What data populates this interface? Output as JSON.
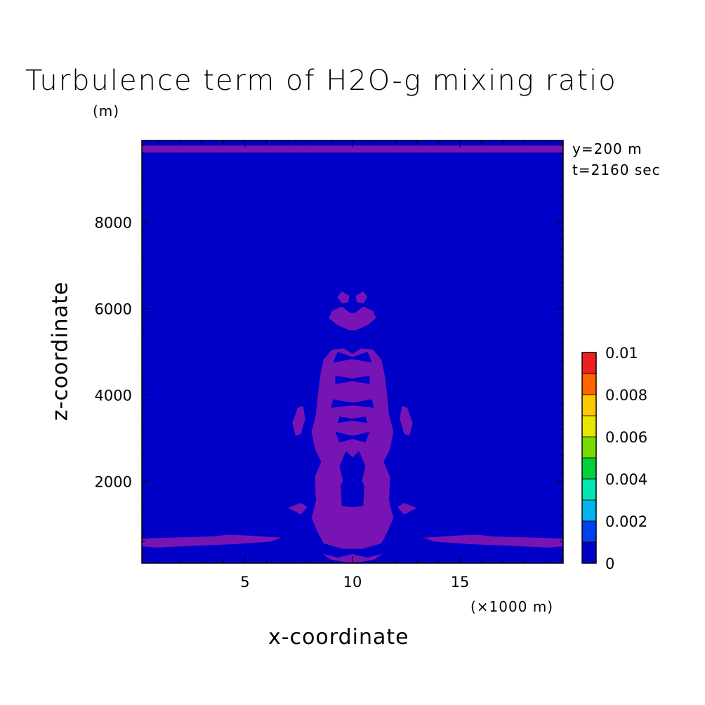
{
  "chart_data": {
    "type": "heatmap",
    "title": "Turbulence term of H2O-g mixing ratio",
    "units_label": "(m)",
    "annotations": [
      "y=200 m",
      "t=2160 sec"
    ],
    "xlabel": "x-coordinate",
    "x_unit": "(×1000 m)",
    "ylabel": "z-coordinate",
    "xlim": [
      0.2,
      19.8
    ],
    "ylim": [
      100,
      9900
    ],
    "x_ticks": [
      {
        "value": 5,
        "label": "5"
      },
      {
        "value": 10,
        "label": "10"
      },
      {
        "value": 15,
        "label": "15"
      }
    ],
    "y_ticks": [
      {
        "value": 2000,
        "label": "2000"
      },
      {
        "value": 4000,
        "label": "4000"
      },
      {
        "value": 6000,
        "label": "6000"
      },
      {
        "value": 8000,
        "label": "8000"
      }
    ],
    "colorbar": {
      "min": 0,
      "max": 0.01,
      "tick_labels": [
        "0",
        "0.002",
        "0.004",
        "0.006",
        "0.008",
        "0.01"
      ],
      "colors": [
        "#0000c8",
        "#0040f0",
        "#00b4f0",
        "#00e6b4",
        "#00d23c",
        "#78dc00",
        "#e6e600",
        "#ffc800",
        "#ff6400",
        "#f01e1e"
      ]
    },
    "background_level": {
      "range": [
        0,
        0.001
      ],
      "color": "#0000c8"
    },
    "regions": [
      {
        "range": [
          0,
          0.001
        ],
        "color": "#7814b4",
        "polygons": [
          [
            [
              0.2,
              9780
            ],
            [
              19.8,
              9780
            ],
            [
              19.8,
              9620
            ],
            [
              0.2,
              9620
            ]
          ],
          [
            [
              0.2,
              670
            ],
            [
              3.5,
              720
            ],
            [
              4.2,
              760
            ],
            [
              5.2,
              740
            ],
            [
              6.7,
              690
            ],
            [
              6.2,
              600
            ],
            [
              4.5,
              540
            ],
            [
              2.5,
              500
            ],
            [
              0.9,
              460
            ],
            [
              0.2,
              490
            ]
          ],
          [
            [
              19.8,
              670
            ],
            [
              16.5,
              720
            ],
            [
              15.8,
              760
            ],
            [
              14.8,
              740
            ],
            [
              13.3,
              690
            ],
            [
              13.8,
              600
            ],
            [
              15.5,
              540
            ],
            [
              17.5,
              500
            ],
            [
              19.1,
              460
            ],
            [
              19.8,
              490
            ]
          ],
          [
            [
              9.85,
              5500
            ],
            [
              9.3,
              5620
            ],
            [
              8.9,
              5780
            ],
            [
              9.05,
              5950
            ],
            [
              9.5,
              6050
            ],
            [
              9.9,
              5900
            ],
            [
              10.1,
              5900
            ],
            [
              10.5,
              6050
            ],
            [
              10.95,
              5950
            ],
            [
              11.1,
              5780
            ],
            [
              10.7,
              5620
            ],
            [
              10.15,
              5500
            ]
          ],
          [
            [
              9.5,
              6120
            ],
            [
              9.3,
              6270
            ],
            [
              9.5,
              6400
            ],
            [
              9.85,
              6300
            ],
            [
              9.8,
              6150
            ]
          ],
          [
            [
              10.5,
              6120
            ],
            [
              10.7,
              6270
            ],
            [
              10.5,
              6400
            ],
            [
              10.15,
              6300
            ],
            [
              10.2,
              6150
            ]
          ],
          [
            [
              9.6,
              5080
            ],
            [
              9.05,
              5050
            ],
            [
              8.65,
              4820
            ],
            [
              8.5,
              4450
            ],
            [
              8.4,
              4050
            ],
            [
              8.3,
              3550
            ],
            [
              8.1,
              3150
            ],
            [
              8.25,
              2750
            ],
            [
              8.55,
              2450
            ],
            [
              8.25,
              2100
            ],
            [
              8.3,
              1550
            ],
            [
              8.1,
              1150
            ],
            [
              8.35,
              850
            ],
            [
              8.65,
              560
            ],
            [
              9.55,
              430
            ],
            [
              10.45,
              430
            ],
            [
              11.35,
              560
            ],
            [
              11.65,
              850
            ],
            [
              11.9,
              1150
            ],
            [
              11.7,
              1550
            ],
            [
              11.75,
              2100
            ],
            [
              11.45,
              2450
            ],
            [
              11.75,
              2750
            ],
            [
              11.9,
              3150
            ],
            [
              11.7,
              3550
            ],
            [
              11.6,
              4050
            ],
            [
              11.5,
              4450
            ],
            [
              11.35,
              4820
            ],
            [
              10.95,
              5050
            ],
            [
              10.4,
              5080
            ],
            [
              10.0,
              4950
            ]
          ],
          [
            [
              7.45,
              3700
            ],
            [
              7.2,
              3350
            ],
            [
              7.35,
              3050
            ],
            [
              7.6,
              3100
            ],
            [
              7.8,
              3450
            ],
            [
              7.7,
              3750
            ]
          ],
          [
            [
              12.55,
              3700
            ],
            [
              12.8,
              3350
            ],
            [
              12.65,
              3050
            ],
            [
              12.4,
              3100
            ],
            [
              12.2,
              3450
            ],
            [
              12.3,
              3750
            ]
          ],
          [
            [
              7.6,
              1500
            ],
            [
              7.0,
              1380
            ],
            [
              7.6,
              1230
            ],
            [
              7.9,
              1400
            ]
          ],
          [
            [
              12.4,
              1500
            ],
            [
              13.0,
              1380
            ],
            [
              12.4,
              1230
            ],
            [
              12.1,
              1400
            ]
          ],
          [
            [
              8.6,
              320
            ],
            [
              9.3,
              230
            ],
            [
              10.0,
              310
            ],
            [
              10.7,
              230
            ],
            [
              11.4,
              320
            ],
            [
              11.0,
              180
            ],
            [
              10.3,
              120
            ],
            [
              9.7,
              120
            ],
            [
              9.0,
              180
            ]
          ]
        ]
      },
      {
        "range": [
          0,
          0.001
        ],
        "color": "#0000c8",
        "polygons": [
          [
            [
              9.6,
              1900
            ],
            [
              9.4,
              2350
            ],
            [
              9.7,
              2700
            ],
            [
              10.0,
              2550
            ],
            [
              10.3,
              2700
            ],
            [
              10.6,
              2350
            ],
            [
              10.4,
              1900
            ],
            [
              10.0,
              2050
            ]
          ],
          [
            [
              10.0,
              1400
            ],
            [
              9.5,
              1420
            ],
            [
              9.45,
              1900
            ],
            [
              9.75,
              2200
            ],
            [
              10.0,
              2000
            ],
            [
              10.25,
              2200
            ],
            [
              10.55,
              1900
            ],
            [
              10.5,
              1420
            ]
          ],
          [
            [
              9.2,
              4250
            ],
            [
              9.2,
              4450
            ],
            [
              10.0,
              4380
            ],
            [
              10.8,
              4450
            ],
            [
              10.8,
              4250
            ],
            [
              10.0,
              4320
            ]
          ],
          [
            [
              9.0,
              3700
            ],
            [
              9.1,
              3900
            ],
            [
              10.0,
              3820
            ],
            [
              10.9,
              3900
            ],
            [
              11.0,
              3700
            ],
            [
              10.0,
              3760
            ]
          ],
          [
            [
              9.1,
              4750
            ],
            [
              9.3,
              5000
            ],
            [
              10.0,
              4880
            ],
            [
              10.7,
              5000
            ],
            [
              10.9,
              4750
            ],
            [
              10.0,
              4830
            ]
          ],
          [
            [
              9.4,
              2900
            ],
            [
              9.2,
              3150
            ],
            [
              10.0,
              3050
            ],
            [
              10.8,
              3150
            ],
            [
              10.6,
              2900
            ],
            [
              10.0,
              2980
            ]
          ],
          [
            [
              9.3,
              3350
            ],
            [
              9.4,
              3500
            ],
            [
              10.0,
              3450
            ],
            [
              10.6,
              3500
            ],
            [
              10.7,
              3350
            ],
            [
              10.0,
              3400
            ]
          ]
        ]
      }
    ]
  }
}
